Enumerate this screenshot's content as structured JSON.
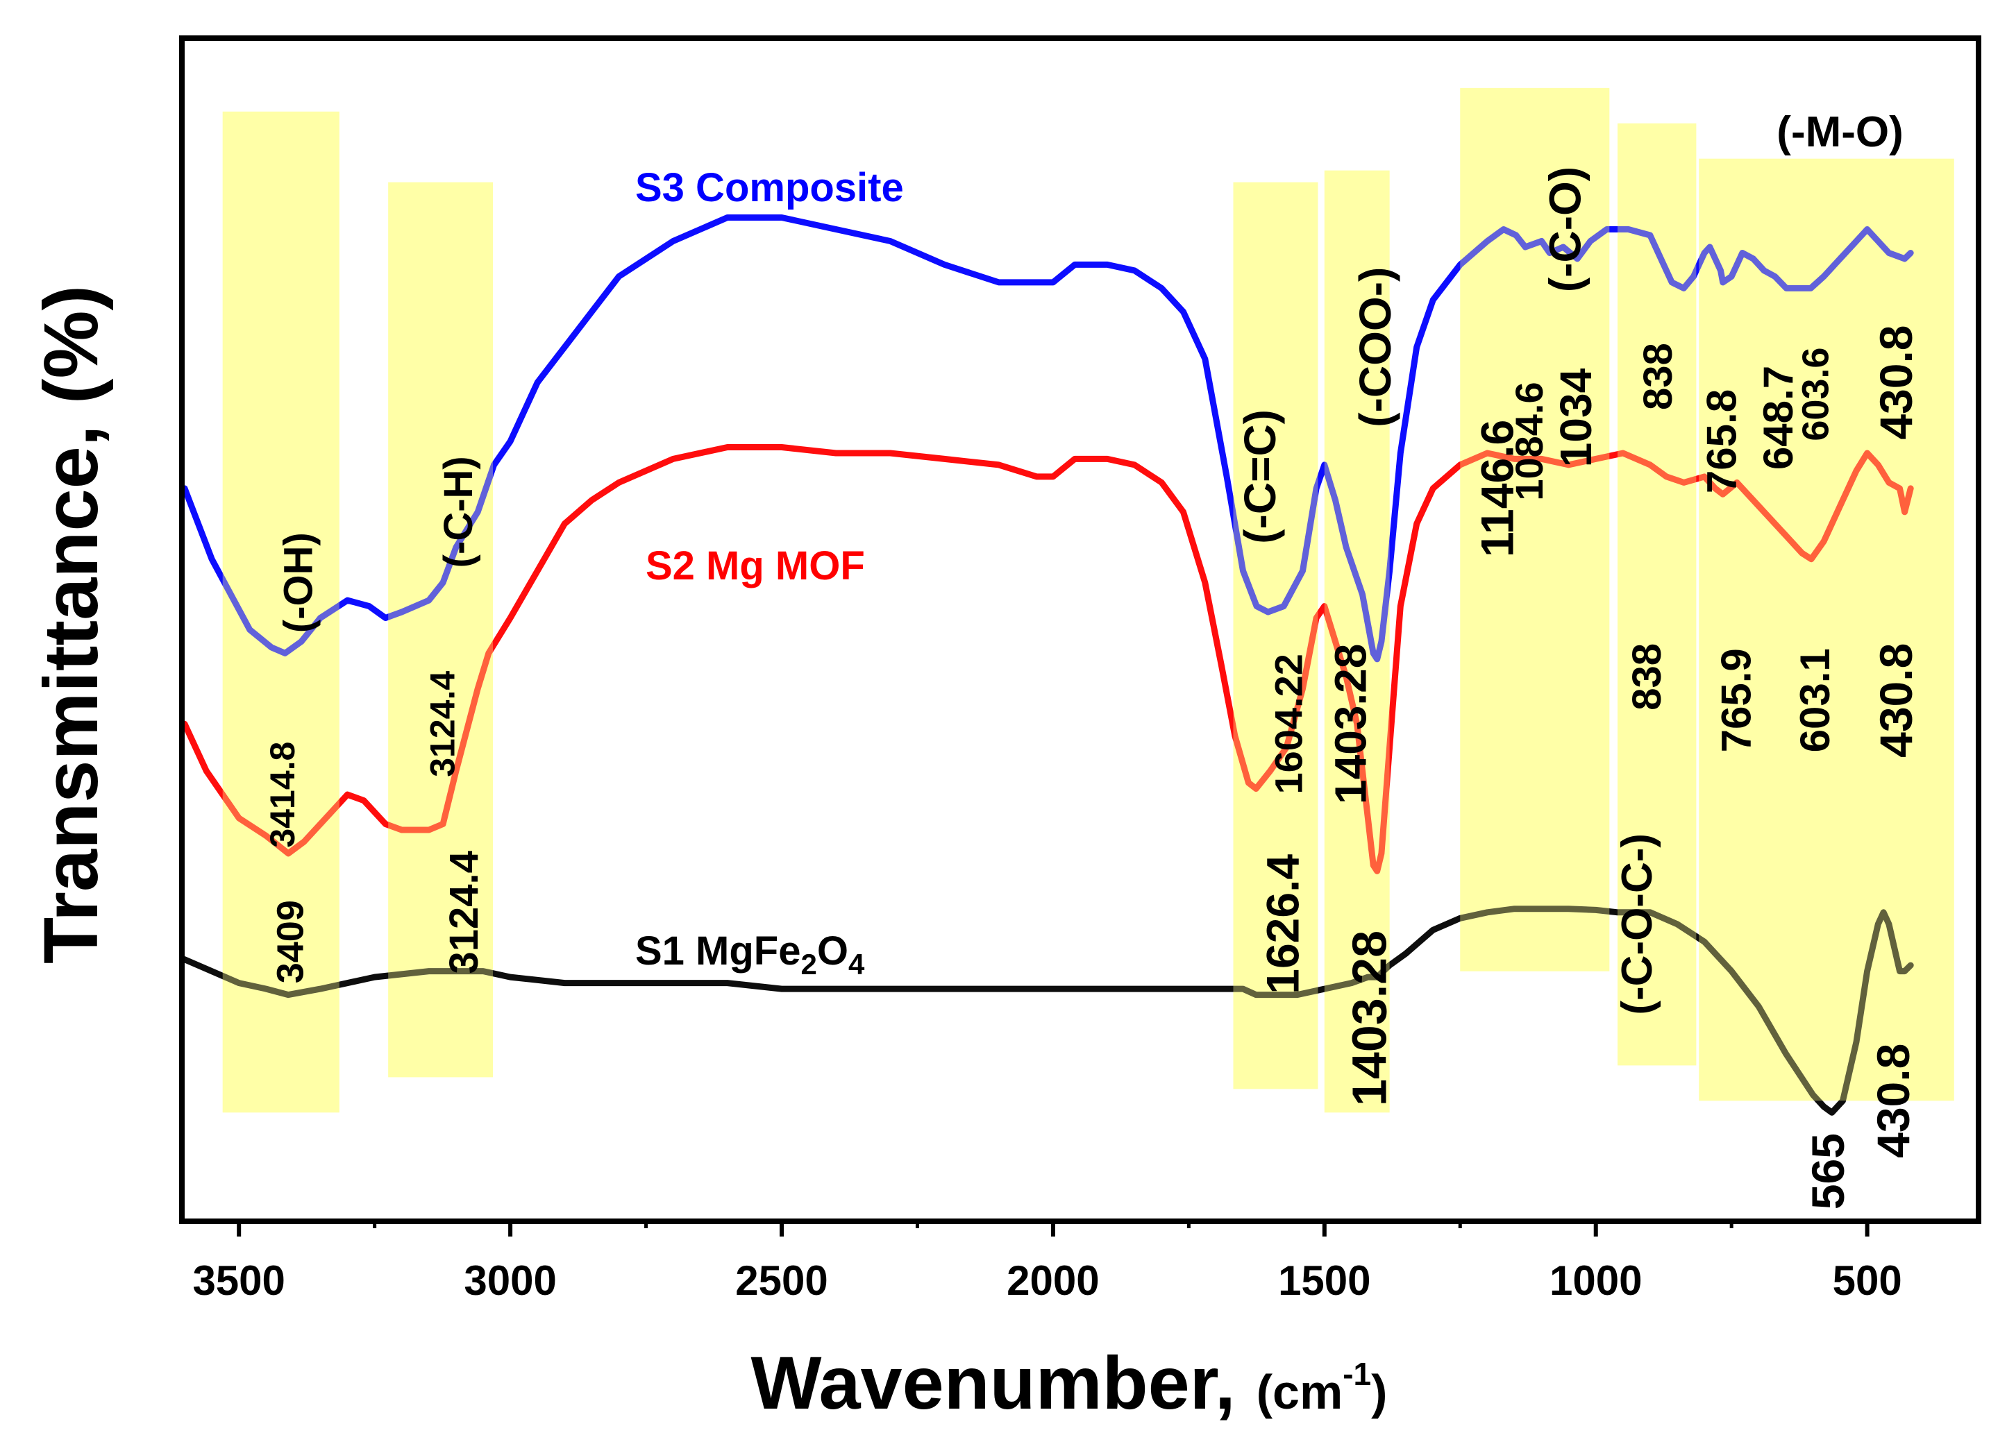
{
  "chart_data": {
    "type": "line",
    "xlabel_main": "Wavenumber, ",
    "xlabel_unit_open": "(cm",
    "xlabel_unit_sup": "-1",
    "xlabel_unit_close": ")",
    "ylabel": "Transmittance, (%)",
    "xlim": [
      3600,
      300
    ],
    "x_reversed": true,
    "xticks": [
      "3500",
      "3000",
      "2500",
      "2000",
      "1500",
      "1000",
      "500"
    ],
    "xtick_values": [
      3500,
      3000,
      2500,
      2000,
      1500,
      1000,
      500
    ],
    "y_ticks_shown": false,
    "legend": "none",
    "series_labels": {
      "S3": "S3 Composite",
      "S2": "S2 Mg MOF",
      "S1_prefix": "S1 MgFe",
      "S1_sub1": "2",
      "S1_mid": "O",
      "S1_sub2": "4"
    },
    "colors": {
      "S3": "#0000ff",
      "S2": "#ff0000",
      "S1": "#000000",
      "highlight": "#ffff9e"
    },
    "highlight_bands": [
      {
        "from": 3530,
        "to": 3315,
        "label": "(-OH)"
      },
      {
        "from": 3225,
        "to": 3032,
        "label": "(-C-H)"
      },
      {
        "from": 1668,
        "to": 1512,
        "label": "(-C=C)"
      },
      {
        "from": 1500,
        "to": 1380,
        "label": "(-COO-)"
      },
      {
        "from": 1250,
        "to": 975,
        "label": "(-C-O)"
      },
      {
        "from": 960,
        "to": 815,
        "label": "(-C-O-C-)"
      },
      {
        "from": 810,
        "to": 340,
        "label": "(-M-O)"
      }
    ],
    "series": [
      {
        "id": "S3",
        "points": [
          [
            3600,
            62
          ],
          [
            3550,
            56
          ],
          [
            3480,
            50
          ],
          [
            3440,
            48.5
          ],
          [
            3415,
            48
          ],
          [
            3385,
            49
          ],
          [
            3350,
            51
          ],
          [
            3300,
            52.5
          ],
          [
            3260,
            52
          ],
          [
            3230,
            51
          ],
          [
            3200,
            51.5
          ],
          [
            3150,
            52.5
          ],
          [
            3124,
            54
          ],
          [
            3100,
            57
          ],
          [
            3060,
            60
          ],
          [
            3030,
            64
          ],
          [
            3000,
            66
          ],
          [
            2950,
            71
          ],
          [
            2900,
            74
          ],
          [
            2850,
            77
          ],
          [
            2800,
            80
          ],
          [
            2700,
            83
          ],
          [
            2600,
            85
          ],
          [
            2500,
            85
          ],
          [
            2400,
            84
          ],
          [
            2300,
            83
          ],
          [
            2200,
            81
          ],
          [
            2100,
            79.5
          ],
          [
            2030,
            79.5
          ],
          [
            2000,
            79.5
          ],
          [
            1960,
            81
          ],
          [
            1900,
            81
          ],
          [
            1850,
            80.5
          ],
          [
            1800,
            79
          ],
          [
            1760,
            77
          ],
          [
            1720,
            73
          ],
          [
            1680,
            63
          ],
          [
            1650,
            55
          ],
          [
            1625,
            52
          ],
          [
            1604,
            51.5
          ],
          [
            1575,
            52
          ],
          [
            1540,
            55
          ],
          [
            1515,
            62
          ],
          [
            1500,
            64
          ],
          [
            1480,
            61
          ],
          [
            1460,
            57
          ],
          [
            1445,
            55
          ],
          [
            1430,
            53
          ],
          [
            1410,
            48
          ],
          [
            1403,
            47.5
          ],
          [
            1395,
            49
          ],
          [
            1380,
            55
          ],
          [
            1360,
            65
          ],
          [
            1330,
            74
          ],
          [
            1300,
            78
          ],
          [
            1250,
            81
          ],
          [
            1200,
            83
          ],
          [
            1170,
            84
          ],
          [
            1147,
            83.5
          ],
          [
            1130,
            82.5
          ],
          [
            1100,
            83
          ],
          [
            1085,
            82
          ],
          [
            1060,
            82.5
          ],
          [
            1034,
            81.5
          ],
          [
            1010,
            83
          ],
          [
            980,
            84
          ],
          [
            940,
            84
          ],
          [
            900,
            83.5
          ],
          [
            880,
            81.5
          ],
          [
            860,
            79.5
          ],
          [
            838,
            79
          ],
          [
            820,
            80
          ],
          [
            800,
            82
          ],
          [
            790,
            82.5
          ],
          [
            770,
            80.5
          ],
          [
            766,
            79.5
          ],
          [
            750,
            80
          ],
          [
            730,
            82
          ],
          [
            710,
            81.5
          ],
          [
            690,
            80.5
          ],
          [
            670,
            80
          ],
          [
            649,
            79
          ],
          [
            630,
            79
          ],
          [
            604,
            79
          ],
          [
            580,
            80
          ],
          [
            550,
            81.5
          ],
          [
            520,
            83
          ],
          [
            500,
            84
          ],
          [
            480,
            83
          ],
          [
            460,
            82
          ],
          [
            431,
            81.5
          ],
          [
            420,
            82
          ]
        ]
      },
      {
        "id": "S2",
        "points": [
          [
            3600,
            42
          ],
          [
            3560,
            38
          ],
          [
            3500,
            34
          ],
          [
            3450,
            32.5
          ],
          [
            3409,
            31
          ],
          [
            3380,
            32
          ],
          [
            3340,
            34
          ],
          [
            3300,
            36
          ],
          [
            3270,
            35.5
          ],
          [
            3230,
            33.5
          ],
          [
            3200,
            33
          ],
          [
            3150,
            33
          ],
          [
            3124,
            33.5
          ],
          [
            3100,
            38
          ],
          [
            3060,
            45
          ],
          [
            3040,
            48
          ],
          [
            3000,
            51
          ],
          [
            2950,
            55
          ],
          [
            2900,
            59
          ],
          [
            2850,
            61
          ],
          [
            2800,
            62.5
          ],
          [
            2700,
            64.5
          ],
          [
            2600,
            65.5
          ],
          [
            2500,
            65.5
          ],
          [
            2400,
            65
          ],
          [
            2300,
            65
          ],
          [
            2200,
            64.5
          ],
          [
            2100,
            64
          ],
          [
            2030,
            63
          ],
          [
            2000,
            63
          ],
          [
            1960,
            64.5
          ],
          [
            1900,
            64.5
          ],
          [
            1850,
            64
          ],
          [
            1800,
            62.5
          ],
          [
            1760,
            60
          ],
          [
            1720,
            54
          ],
          [
            1690,
            47
          ],
          [
            1665,
            41
          ],
          [
            1640,
            37
          ],
          [
            1626,
            36.5
          ],
          [
            1600,
            38
          ],
          [
            1570,
            40
          ],
          [
            1540,
            45
          ],
          [
            1515,
            51
          ],
          [
            1500,
            52
          ],
          [
            1480,
            49
          ],
          [
            1460,
            46
          ],
          [
            1440,
            42
          ],
          [
            1420,
            34
          ],
          [
            1410,
            30
          ],
          [
            1403,
            29.5
          ],
          [
            1395,
            31
          ],
          [
            1380,
            40
          ],
          [
            1360,
            52
          ],
          [
            1330,
            59
          ],
          [
            1300,
            62
          ],
          [
            1250,
            64
          ],
          [
            1200,
            65
          ],
          [
            1150,
            64.5
          ],
          [
            1100,
            64.5
          ],
          [
            1050,
            64
          ],
          [
            1000,
            64.5
          ],
          [
            950,
            65
          ],
          [
            900,
            64
          ],
          [
            870,
            63
          ],
          [
            838,
            62.5
          ],
          [
            800,
            63
          ],
          [
            780,
            62
          ],
          [
            766,
            61.5
          ],
          [
            740,
            62.5
          ],
          [
            720,
            61.5
          ],
          [
            690,
            60
          ],
          [
            650,
            58
          ],
          [
            620,
            56.5
          ],
          [
            603,
            56
          ],
          [
            580,
            57.5
          ],
          [
            550,
            60.5
          ],
          [
            520,
            63.5
          ],
          [
            500,
            65
          ],
          [
            480,
            64
          ],
          [
            460,
            62.5
          ],
          [
            440,
            62
          ],
          [
            431,
            60
          ],
          [
            420,
            62
          ]
        ]
      },
      {
        "id": "S1",
        "points": [
          [
            3600,
            22
          ],
          [
            3500,
            20
          ],
          [
            3450,
            19.5
          ],
          [
            3409,
            19
          ],
          [
            3350,
            19.5
          ],
          [
            3250,
            20.5
          ],
          [
            3150,
            21
          ],
          [
            3050,
            21
          ],
          [
            3000,
            20.5
          ],
          [
            2900,
            20
          ],
          [
            2800,
            20
          ],
          [
            2700,
            20
          ],
          [
            2600,
            20
          ],
          [
            2500,
            19.5
          ],
          [
            2400,
            19.5
          ],
          [
            2300,
            19.5
          ],
          [
            2200,
            19.5
          ],
          [
            2100,
            19.5
          ],
          [
            2000,
            19.5
          ],
          [
            1900,
            19.5
          ],
          [
            1800,
            19.5
          ],
          [
            1700,
            19.5
          ],
          [
            1650,
            19.5
          ],
          [
            1626,
            19
          ],
          [
            1600,
            19
          ],
          [
            1550,
            19
          ],
          [
            1500,
            19.5
          ],
          [
            1450,
            20
          ],
          [
            1420,
            20.5
          ],
          [
            1403,
            20.5
          ],
          [
            1380,
            21.5
          ],
          [
            1350,
            22.5
          ],
          [
            1300,
            24.5
          ],
          [
            1250,
            25.5
          ],
          [
            1200,
            26
          ],
          [
            1150,
            26.3
          ],
          [
            1100,
            26.3
          ],
          [
            1050,
            26.3
          ],
          [
            1000,
            26.2
          ],
          [
            960,
            26
          ],
          [
            900,
            26
          ],
          [
            850,
            25
          ],
          [
            800,
            23.5
          ],
          [
            750,
            21
          ],
          [
            700,
            18
          ],
          [
            650,
            14
          ],
          [
            600,
            10.5
          ],
          [
            580,
            9.5
          ],
          [
            565,
            9
          ],
          [
            545,
            10
          ],
          [
            520,
            15
          ],
          [
            500,
            21
          ],
          [
            480,
            25
          ],
          [
            470,
            26
          ],
          [
            460,
            25
          ],
          [
            450,
            23
          ],
          [
            440,
            21
          ],
          [
            431,
            21
          ],
          [
            420,
            21.5
          ]
        ]
      }
    ],
    "annotations": [
      {
        "text": "3414.8",
        "x": 3415,
        "y": 36,
        "size": 50,
        "rotate": true
      },
      {
        "text": "(-OH)",
        "x": 3385,
        "y": 54,
        "size": 58,
        "rotate": true
      },
      {
        "text": "3124.4",
        "x": 3120,
        "y": 42,
        "size": 50,
        "rotate": true
      },
      {
        "text": "(-C-H)",
        "x": 3090,
        "y": 60,
        "size": 58,
        "rotate": true
      },
      {
        "text": "3409",
        "x": 3400,
        "y": 23.5,
        "size": 54,
        "rotate": true
      },
      {
        "text": "3124.4",
        "x": 3080,
        "y": 26,
        "size": 58,
        "rotate": true
      },
      {
        "text": "(-C=C)",
        "x": 1612,
        "y": 63,
        "size": 64,
        "rotate": true
      },
      {
        "text": "1604.22",
        "x": 1560,
        "y": 42,
        "size": 56,
        "rotate": true
      },
      {
        "text": "1626.4",
        "x": 1570,
        "y": 25,
        "size": 66,
        "rotate": true
      },
      {
        "text": "(-COO-)",
        "x": 1400,
        "y": 74,
        "size": 64,
        "rotate": true
      },
      {
        "text": "1403.28",
        "x": 1445,
        "y": 42,
        "size": 64,
        "rotate": true
      },
      {
        "text": "1403.28",
        "x": 1410,
        "y": 17,
        "size": 70,
        "rotate": true
      },
      {
        "text": "1146.6",
        "x": 1175,
        "y": 62,
        "size": 66,
        "rotate": true
      },
      {
        "text": "1084.6",
        "x": 1117,
        "y": 66,
        "size": 56,
        "rotate": true
      },
      {
        "text": "1034",
        "x": 1030,
        "y": 68,
        "size": 64,
        "rotate": true
      },
      {
        "text": "(-C-O)",
        "x": 1050,
        "y": 84,
        "size": 64,
        "rotate": true
      },
      {
        "text": "838",
        "x": 880,
        "y": 71.5,
        "size": 58,
        "rotate": true
      },
      {
        "text": "765.8",
        "x": 762,
        "y": 66,
        "size": 60,
        "rotate": true
      },
      {
        "text": "648.7",
        "x": 658,
        "y": 68,
        "size": 60,
        "rotate": true
      },
      {
        "text": "603.6",
        "x": 590,
        "y": 70,
        "size": 54,
        "rotate": true
      },
      {
        "text": "430.8",
        "x": 440,
        "y": 71,
        "size": 66,
        "rotate": true
      },
      {
        "text": "838",
        "x": 900,
        "y": 46,
        "size": 58,
        "rotate": true
      },
      {
        "text": "(-C-O-C-)",
        "x": 918,
        "y": 25,
        "size": 62,
        "rotate": true
      },
      {
        "text": "765.9",
        "x": 735,
        "y": 44,
        "size": 60,
        "rotate": true
      },
      {
        "text": "603.1",
        "x": 590,
        "y": 44,
        "size": 60,
        "rotate": true
      },
      {
        "text": "430.8",
        "x": 440,
        "y": 44,
        "size": 66,
        "rotate": true
      },
      {
        "text": "565",
        "x": 565,
        "y": 4,
        "size": 66,
        "rotate": true
      },
      {
        "text": "430.8",
        "x": 445,
        "y": 10,
        "size": 66,
        "rotate": true
      },
      {
        "text": "(-M-O)",
        "x": 550,
        "y": 92,
        "size": 62,
        "rotate": false
      }
    ]
  }
}
